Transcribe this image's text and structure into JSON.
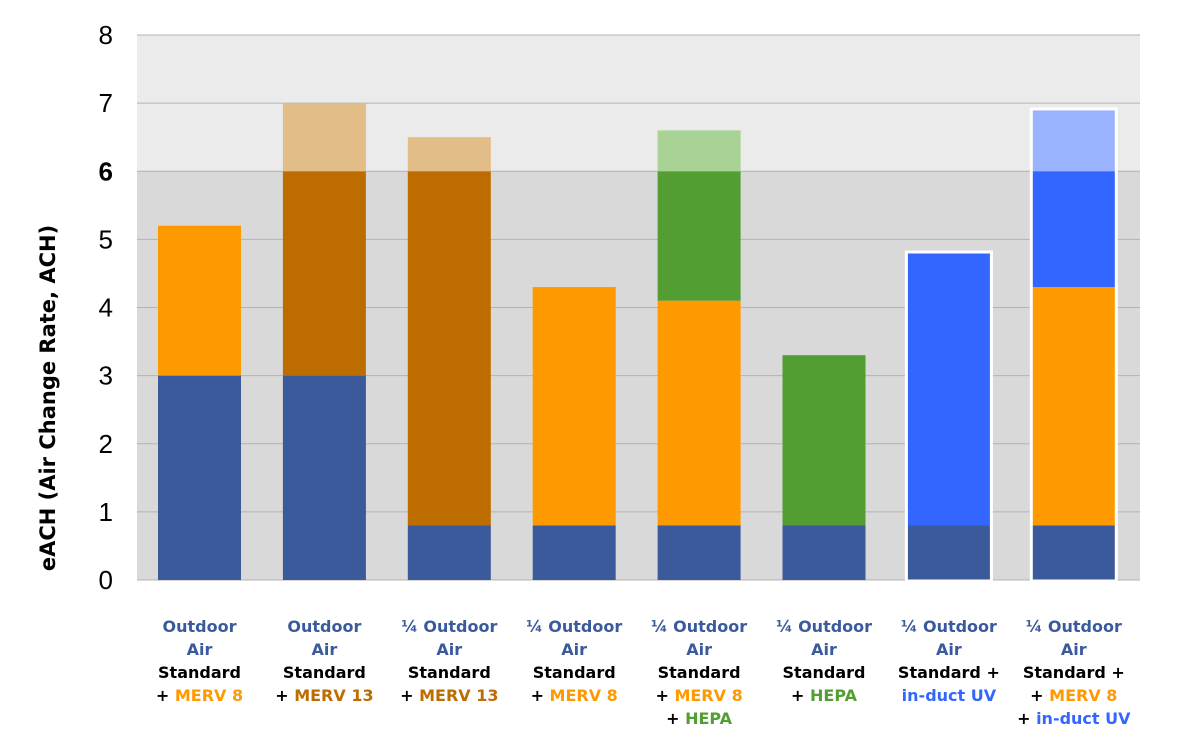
{
  "chart_data": {
    "type": "bar",
    "stacked": true,
    "ylabel": "eACH (Air Change Rate, ACH)",
    "ylim": [
      0,
      8
    ],
    "yticks": [
      "0",
      "1",
      "2",
      "3",
      "4",
      "5",
      "6",
      "7",
      "8"
    ],
    "bold_tick": "6",
    "threshold_band": [
      6,
      8
    ],
    "grid": true,
    "legend": "none",
    "colors": {
      "outdoor_air": "#3a5a9b",
      "merv8": "#ff9900",
      "merv13": "#bd6c00",
      "merv13_light": "#e3bd87",
      "hepa": "#539e32",
      "hepa_light": "#a9d295",
      "uv": "#3366ff",
      "uv_light": "#9ab3ff",
      "blue_label": "#3a5a9b",
      "orange_label": "#ff9900",
      "dark_orange_label": "#bd6c00",
      "green_label": "#539e32",
      "uv_label": "#3366ff",
      "band": "#ebebeb",
      "plot_bg": "#d9d9d9"
    },
    "bars": [
      {
        "segments": [
          [
            0,
            3,
            "outdoor_air"
          ],
          [
            3,
            5.2,
            "merv8"
          ]
        ],
        "label": [
          [
            {
              "t": "Outdoor",
              "c": "blue_label"
            }
          ],
          [
            {
              "t": "Air",
              "c": "blue_label"
            }
          ],
          [
            {
              "t": "Standard",
              "c": "black"
            }
          ],
          [
            {
              "t": "+ ",
              "c": "black"
            },
            {
              "t": "MERV 8",
              "c": "orange_label"
            }
          ]
        ]
      },
      {
        "segments": [
          [
            0,
            3,
            "outdoor_air"
          ],
          [
            3,
            6,
            "merv13"
          ],
          [
            6,
            7,
            "merv13_light"
          ]
        ],
        "label": [
          [
            {
              "t": "Outdoor",
              "c": "blue_label"
            }
          ],
          [
            {
              "t": "Air",
              "c": "blue_label"
            }
          ],
          [
            {
              "t": "Standard",
              "c": "black"
            }
          ],
          [
            {
              "t": "+ ",
              "c": "black"
            },
            {
              "t": "MERV 13",
              "c": "dark_orange_label"
            }
          ]
        ]
      },
      {
        "segments": [
          [
            0,
            0.8,
            "outdoor_air"
          ],
          [
            0.8,
            6,
            "merv13"
          ],
          [
            6,
            6.5,
            "merv13_light"
          ]
        ],
        "label": [
          [
            {
              "t": "¼ Outdoor",
              "c": "blue_label"
            }
          ],
          [
            {
              "t": "Air",
              "c": "blue_label"
            }
          ],
          [
            {
              "t": "Standard",
              "c": "black"
            }
          ],
          [
            {
              "t": "+ ",
              "c": "black"
            },
            {
              "t": "MERV 13",
              "c": "dark_orange_label"
            }
          ]
        ]
      },
      {
        "segments": [
          [
            0,
            0.8,
            "outdoor_air"
          ],
          [
            0.8,
            4.3,
            "merv8"
          ]
        ],
        "label": [
          [
            {
              "t": "¼ Outdoor",
              "c": "blue_label"
            }
          ],
          [
            {
              "t": "Air",
              "c": "blue_label"
            }
          ],
          [
            {
              "t": "Standard",
              "c": "black"
            }
          ],
          [
            {
              "t": "+ ",
              "c": "black"
            },
            {
              "t": "MERV 8",
              "c": "orange_label"
            }
          ]
        ]
      },
      {
        "segments": [
          [
            0,
            0.8,
            "outdoor_air"
          ],
          [
            0.8,
            4.1,
            "merv8"
          ],
          [
            4.1,
            6,
            "hepa"
          ],
          [
            6,
            6.6,
            "hepa_light"
          ]
        ],
        "label": [
          [
            {
              "t": "¼ Outdoor",
              "c": "blue_label"
            }
          ],
          [
            {
              "t": "Air",
              "c": "blue_label"
            }
          ],
          [
            {
              "t": "Standard",
              "c": "black"
            }
          ],
          [
            {
              "t": "+ ",
              "c": "black"
            },
            {
              "t": "MERV 8",
              "c": "orange_label"
            }
          ],
          [
            {
              "t": "+ ",
              "c": "black"
            },
            {
              "t": "HEPA",
              "c": "green_label"
            }
          ]
        ]
      },
      {
        "segments": [
          [
            0,
            0.8,
            "outdoor_air"
          ],
          [
            0.8,
            3.3,
            "hepa"
          ]
        ],
        "label": [
          [
            {
              "t": "¼ Outdoor",
              "c": "blue_label"
            }
          ],
          [
            {
              "t": "Air",
              "c": "blue_label"
            }
          ],
          [
            {
              "t": "Standard",
              "c": "black"
            }
          ],
          [
            {
              "t": "+ ",
              "c": "black"
            },
            {
              "t": "HEPA",
              "c": "green_label"
            }
          ]
        ]
      },
      {
        "outlined": true,
        "segments": [
          [
            0,
            0.8,
            "outdoor_air"
          ],
          [
            0.8,
            4.8,
            "uv"
          ]
        ],
        "label": [
          [
            {
              "t": "¼ Outdoor",
              "c": "blue_label"
            }
          ],
          [
            {
              "t": "Air",
              "c": "blue_label"
            }
          ],
          [
            {
              "t": "Standard +",
              "c": "black"
            }
          ],
          [
            {
              "t": "in-duct UV",
              "c": "uv_label"
            }
          ]
        ]
      },
      {
        "outlined": true,
        "segments": [
          [
            0,
            0.8,
            "outdoor_air"
          ],
          [
            0.8,
            4.3,
            "merv8"
          ],
          [
            4.3,
            6,
            "uv"
          ],
          [
            6,
            6.9,
            "uv_light"
          ]
        ],
        "label": [
          [
            {
              "t": "¼ Outdoor",
              "c": "blue_label"
            }
          ],
          [
            {
              "t": "Air",
              "c": "blue_label"
            }
          ],
          [
            {
              "t": "Standard +",
              "c": "black"
            }
          ],
          [
            {
              "t": "+ ",
              "c": "black"
            },
            {
              "t": "MERV 8",
              "c": "orange_label"
            }
          ],
          [
            {
              "t": "+ ",
              "c": "black"
            },
            {
              "t": "in-duct UV",
              "c": "uv_label"
            }
          ]
        ]
      }
    ]
  }
}
